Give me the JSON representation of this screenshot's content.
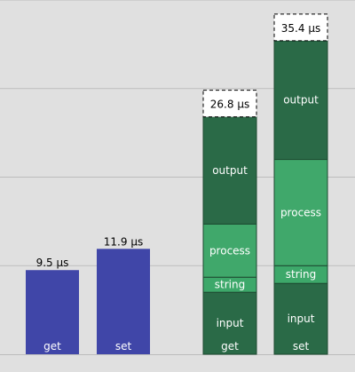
{
  "chart_data": {
    "type": "bar",
    "stacked": true,
    "grid": true,
    "ylim": [
      0,
      40
    ],
    "colors": {
      "background": "#e0e0e0",
      "grid": "#bdbdbd",
      "simple": "#4046a8",
      "input": "#2a6a47",
      "string": "#3da86a",
      "process": "#40a86b",
      "output": "#2a6a47"
    },
    "simple_bars": [
      {
        "label": "get",
        "value": 9.5,
        "value_label": "9.5 µs"
      },
      {
        "label": "set",
        "value": 11.9,
        "value_label": "11.9 µs"
      }
    ],
    "stacked_bars": [
      {
        "label": "get",
        "total_label": "26.8 µs",
        "segments": [
          {
            "name": "input",
            "value": 7.0
          },
          {
            "name": "string",
            "value": 1.7
          },
          {
            "name": "process",
            "value": 6.0
          },
          {
            "name": "output",
            "value": 12.1
          }
        ]
      },
      {
        "label": "set",
        "total_label": "35.4 µs",
        "segments": [
          {
            "name": "input",
            "value": 8.0
          },
          {
            "name": "string",
            "value": 2.0
          },
          {
            "name": "process",
            "value": 12.0
          },
          {
            "name": "output",
            "value": 13.4
          }
        ]
      }
    ]
  }
}
